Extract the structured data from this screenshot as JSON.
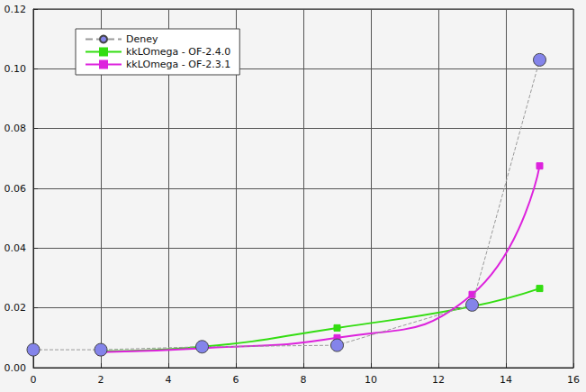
{
  "chart_data": {
    "type": "line",
    "series": [
      {
        "name": "Deney",
        "color": "#8484ea",
        "marker": "circle",
        "line_style": "dashed",
        "x": [
          0,
          2,
          5,
          9,
          13,
          15
        ],
        "values": [
          0.006,
          0.006,
          0.007,
          0.0075,
          0.021,
          0.103
        ]
      },
      {
        "name": "kkLOmega - OF-2.4.0",
        "color": "#33dd11",
        "marker": "square",
        "line_style": "solid",
        "x": [
          2,
          5,
          9,
          13,
          15
        ],
        "values": [
          0.0055,
          0.007,
          0.0133,
          0.0205,
          0.0265
        ]
      },
      {
        "name": "kkLOmega - OF-2.3.1",
        "color": "#dd22dd",
        "marker": "square",
        "line_style": "solid",
        "x": [
          2,
          5,
          9,
          13,
          15
        ],
        "values": [
          0.0052,
          0.0065,
          0.01,
          0.0245,
          0.0675
        ]
      }
    ],
    "xlim": [
      0,
      16
    ],
    "xticks": [
      0,
      2,
      4,
      6,
      8,
      10,
      12,
      14,
      16
    ],
    "ylim": [
      0,
      0.12
    ],
    "yticks": [
      {
        "value": 0,
        "label": "0.00"
      },
      {
        "value": 0.02,
        "label": "0.02"
      },
      {
        "value": 0.04,
        "label": "0.04"
      },
      {
        "value": 0.06,
        "label": "0.06"
      },
      {
        "value": 0.08,
        "label": "0.08"
      },
      {
        "value": 0.1,
        "label": "0.10"
      },
      {
        "value": 0.12,
        "label": "0.12"
      }
    ],
    "grid": true,
    "legend": "upper left"
  }
}
